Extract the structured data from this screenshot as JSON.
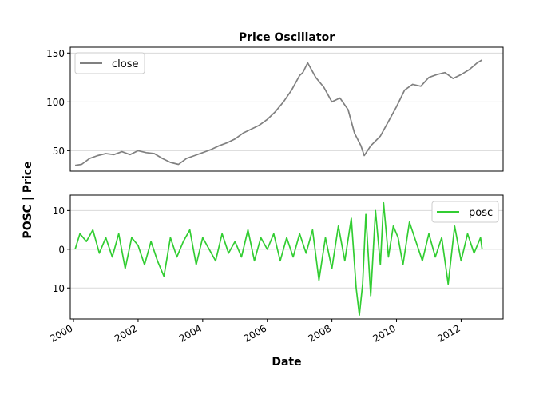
{
  "chart_data": [
    {
      "type": "line",
      "title": "Price Oscillator",
      "ylim": [
        29,
        156
      ],
      "xlim": [
        1999.9,
        2013.3
      ],
      "yticks": [
        50,
        100,
        150
      ],
      "grid": "horizontal",
      "legend": "upper left",
      "series": [
        {
          "name": "close",
          "color": "#808080",
          "x": [
            2000.05,
            2000.25,
            2000.5,
            2000.75,
            2001.0,
            2001.25,
            2001.5,
            2001.75,
            2002.0,
            2002.25,
            2002.5,
            2002.75,
            2003.0,
            2003.25,
            2003.5,
            2003.75,
            2004.0,
            2004.25,
            2004.5,
            2004.75,
            2005.0,
            2005.25,
            2005.5,
            2005.75,
            2006.0,
            2006.25,
            2006.5,
            2006.75,
            2007.0,
            2007.1,
            2007.25,
            2007.5,
            2007.75,
            2008.0,
            2008.25,
            2008.5,
            2008.7,
            2008.9,
            2009.0,
            2009.2,
            2009.5,
            2009.75,
            2010.0,
            2010.25,
            2010.5,
            2010.75,
            2011.0,
            2011.25,
            2011.5,
            2011.75,
            2012.0,
            2012.25,
            2012.5,
            2012.65
          ],
          "values": [
            35,
            36,
            42,
            45,
            47,
            46,
            49,
            46,
            50,
            48,
            47,
            42,
            38,
            36,
            42,
            45,
            48,
            51,
            55,
            58,
            62,
            68,
            72,
            76,
            82,
            90,
            100,
            112,
            127,
            130,
            140,
            125,
            115,
            100,
            104,
            92,
            68,
            55,
            45,
            55,
            65,
            80,
            95,
            112,
            118,
            116,
            125,
            128,
            130,
            124,
            128,
            133,
            140,
            143
          ]
        }
      ]
    },
    {
      "type": "line",
      "xlabel": "Date",
      "ylim": [
        -18,
        14
      ],
      "xlim": [
        1999.9,
        2013.3
      ],
      "yticks": [
        -10,
        0,
        10
      ],
      "xticks": [
        "2000",
        "2002",
        "2004",
        "2006",
        "2008",
        "2010",
        "2012"
      ],
      "xtick_values": [
        2000,
        2002,
        2004,
        2006,
        2008,
        2010,
        2012
      ],
      "grid": "horizontal",
      "legend": "upper right",
      "series": [
        {
          "name": "posc",
          "color": "#32cd32",
          "x": [
            2000.05,
            2000.2,
            2000.4,
            2000.6,
            2000.8,
            2001.0,
            2001.2,
            2001.4,
            2001.6,
            2001.8,
            2002.0,
            2002.2,
            2002.4,
            2002.6,
            2002.8,
            2003.0,
            2003.2,
            2003.4,
            2003.6,
            2003.8,
            2004.0,
            2004.2,
            2004.4,
            2004.6,
            2004.8,
            2005.0,
            2005.2,
            2005.4,
            2005.6,
            2005.8,
            2006.0,
            2006.2,
            2006.4,
            2006.6,
            2006.8,
            2007.0,
            2007.2,
            2007.4,
            2007.6,
            2007.8,
            2008.0,
            2008.2,
            2008.4,
            2008.6,
            2008.75,
            2008.85,
            2008.95,
            2009.05,
            2009.2,
            2009.35,
            2009.5,
            2009.6,
            2009.75,
            2009.9,
            2010.05,
            2010.2,
            2010.4,
            2010.6,
            2010.8,
            2011.0,
            2011.2,
            2011.4,
            2011.6,
            2011.8,
            2012.0,
            2012.2,
            2012.4,
            2012.6,
            2012.65
          ],
          "values": [
            0,
            4,
            2,
            5,
            -1,
            3,
            -2,
            4,
            -5,
            3,
            1,
            -4,
            2,
            -3,
            -7,
            3,
            -2,
            2,
            5,
            -4,
            3,
            0,
            -3,
            4,
            -1,
            2,
            -2,
            5,
            -3,
            3,
            0,
            4,
            -3,
            3,
            -2,
            4,
            -1,
            5,
            -8,
            3,
            -5,
            6,
            -3,
            8,
            -10,
            -17,
            -9,
            9,
            -12,
            10,
            -4,
            12,
            -2,
            6,
            3,
            -4,
            7,
            2,
            -3,
            4,
            -2,
            3,
            -9,
            6,
            -3,
            4,
            -1,
            3,
            0
          ]
        }
      ]
    }
  ],
  "shared": {
    "ylabel": "POSC | Price"
  }
}
